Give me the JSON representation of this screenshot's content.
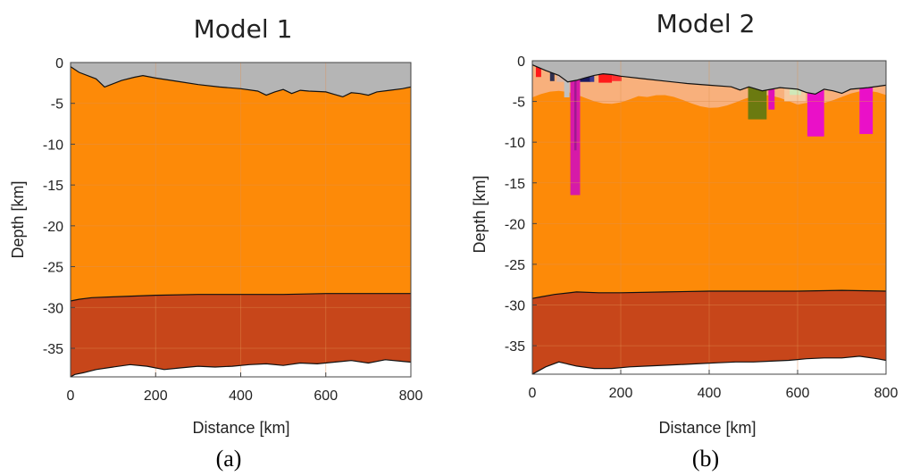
{
  "panels": {
    "a": {
      "label": "(a)"
    },
    "b": {
      "label": "(b)"
    }
  },
  "chart_data": [
    {
      "type": "area",
      "title": "Model 1",
      "xlabel": "Distance [km]",
      "ylabel": "Depth [km]",
      "xlim": [
        0,
        800
      ],
      "ylim": [
        -38.5,
        0
      ],
      "xticks": [
        0,
        200,
        400,
        600,
        800
      ],
      "yticks": [
        0,
        -5,
        -10,
        -15,
        -20,
        -25,
        -30,
        -35
      ],
      "grid": true,
      "colors": {
        "sky": "#b5b5b5",
        "upper_crust": "#fd8a08",
        "lower_crust": "#c7461a",
        "below": "#ffffff",
        "grid": "#e09050"
      },
      "series": [
        {
          "x": [
            0,
            20,
            60,
            80,
            95,
            120,
            150,
            170,
            200,
            250,
            300,
            350,
            400,
            440,
            460,
            480,
            500,
            520,
            540,
            560,
            600,
            620,
            640,
            660,
            680,
            700,
            720,
            750,
            780,
            800
          ],
          "y": [
            -0.5,
            -1.2,
            -2.0,
            -3.0,
            -2.7,
            -2.2,
            -1.8,
            -1.6,
            -1.9,
            -2.3,
            -2.7,
            -3.0,
            -3.2,
            -3.5,
            -4.0,
            -3.6,
            -3.3,
            -3.8,
            -3.4,
            -3.5,
            -3.6,
            -3.9,
            -4.2,
            -3.7,
            -3.8,
            -4.0,
            -3.6,
            -3.4,
            -3.2,
            -3.0
          ]
        },
        {
          "x": [
            0,
            20,
            50,
            100,
            150,
            200,
            300,
            400,
            500,
            600,
            700,
            800
          ],
          "y": [
            -29.2,
            -29.0,
            -28.8,
            -28.7,
            -28.6,
            -28.5,
            -28.4,
            -28.4,
            -28.4,
            -28.3,
            -28.3,
            -28.3
          ]
        },
        {
          "x": [
            0,
            10,
            30,
            60,
            100,
            140,
            180,
            220,
            260,
            300,
            340,
            380,
            420,
            460,
            500,
            540,
            580,
            620,
            660,
            700,
            740,
            780,
            800
          ],
          "y": [
            -38.5,
            -38.2,
            -38.0,
            -37.6,
            -37.3,
            -37.0,
            -37.2,
            -37.6,
            -37.4,
            -37.2,
            -37.3,
            -37.2,
            -37.0,
            -36.9,
            -37.1,
            -36.8,
            -36.9,
            -36.7,
            -36.5,
            -36.8,
            -36.4,
            -36.6,
            -36.7
          ]
        }
      ]
    },
    {
      "type": "area",
      "title": "Model 2",
      "xlabel": "Distance [km]",
      "ylabel": "Depth [km]",
      "xlim": [
        0,
        800
      ],
      "ylim": [
        -38.5,
        0
      ],
      "xticks": [
        0,
        200,
        400,
        600,
        800
      ],
      "yticks": [
        0,
        -5,
        -10,
        -15,
        -20,
        -25,
        -30,
        -35
      ],
      "grid": true,
      "colors": {
        "sky": "#b5b5b5",
        "upper_crust": "#fd8a08",
        "lower_crust": "#c7461a",
        "below": "#ffffff",
        "grid": "#e09050",
        "sediment_light": "#f7b48a",
        "sediment_pale": "#f6c9a0"
      },
      "series": [
        {
          "x": [
            0,
            30,
            60,
            80,
            100,
            120,
            140,
            160,
            180,
            200,
            250,
            300,
            350,
            400,
            450,
            470,
            490,
            520,
            560,
            600,
            620,
            640,
            660,
            680,
            700,
            720,
            760,
            800
          ],
          "y": [
            -0.5,
            -1.2,
            -1.8,
            -2.6,
            -2.4,
            -2.1,
            -1.8,
            -1.6,
            -1.7,
            -1.9,
            -2.2,
            -2.5,
            -2.8,
            -3.0,
            -3.2,
            -3.6,
            -3.2,
            -3.7,
            -3.3,
            -3.5,
            -3.9,
            -4.1,
            -3.5,
            -3.7,
            -4.0,
            -3.5,
            -3.3,
            -3.0
          ]
        },
        {
          "x": [
            0,
            20,
            50,
            100,
            150,
            200,
            300,
            400,
            500,
            600,
            700,
            800
          ],
          "y": [
            -29.2,
            -29.0,
            -28.7,
            -28.4,
            -28.5,
            -28.5,
            -28.4,
            -28.3,
            -28.3,
            -28.3,
            -28.2,
            -28.3
          ]
        },
        {
          "x": [
            0,
            10,
            30,
            60,
            100,
            140,
            180,
            220,
            260,
            300,
            340,
            380,
            420,
            460,
            500,
            540,
            580,
            620,
            660,
            700,
            740,
            780,
            800
          ],
          "y": [
            -38.5,
            -38.2,
            -37.6,
            -37.0,
            -37.5,
            -37.8,
            -37.8,
            -37.6,
            -37.5,
            -37.4,
            -37.3,
            -37.2,
            -37.1,
            -37.0,
            -37.0,
            -36.9,
            -36.8,
            -36.6,
            -36.5,
            -36.5,
            -36.3,
            -36.6,
            -36.8
          ]
        }
      ],
      "bodies": [
        {
          "x0": 86,
          "x1": 108,
          "y0": -2.0,
          "y1": -16.5,
          "color": "#d61aa8"
        },
        {
          "x0": 95,
          "x1": 100,
          "y0": -2.0,
          "y1": -11.0,
          "color": "#a01890"
        },
        {
          "x0": 622,
          "x1": 660,
          "y0": -3.0,
          "y1": -9.3,
          "color": "#ea10c8"
        },
        {
          "x0": 740,
          "x1": 770,
          "y0": -3.0,
          "y1": -9.0,
          "color": "#ea10c8"
        },
        {
          "x0": 488,
          "x1": 530,
          "y0": -2.8,
          "y1": -7.2,
          "color": "#6b7a10"
        },
        {
          "x0": 534,
          "x1": 548,
          "y0": -3.0,
          "y1": -6.0,
          "color": "#e010b8"
        },
        {
          "x0": 570,
          "x1": 618,
          "y0": -2.5,
          "y1": -5.0,
          "color": "#f6c9a0"
        },
        {
          "x0": 582,
          "x1": 608,
          "y0": -2.5,
          "y1": -4.2,
          "color": "#cfe8b8"
        },
        {
          "x0": 150,
          "x1": 180,
          "y0": -1.5,
          "y1": -2.7,
          "color": "#ff1a1a"
        },
        {
          "x0": 180,
          "x1": 202,
          "y0": -1.6,
          "y1": -2.5,
          "color": "#ff3030"
        },
        {
          "x0": 8,
          "x1": 20,
          "y0": -0.5,
          "y1": -2.0,
          "color": "#ff1a1a"
        },
        {
          "x0": 108,
          "x1": 132,
          "y0": -1.6,
          "y1": -2.6,
          "color": "#1a1a60"
        },
        {
          "x0": 130,
          "x1": 140,
          "y0": -1.8,
          "y1": -2.6,
          "color": "#3a3a90"
        },
        {
          "x0": 40,
          "x1": 50,
          "y0": -0.8,
          "y1": -2.5,
          "color": "#303050"
        },
        {
          "x0": 55,
          "x1": 76,
          "y0": -1.0,
          "y1": -2.6,
          "color": "#d9b7a8"
        },
        {
          "x0": 72,
          "x1": 84,
          "y0": -1.2,
          "y1": -4.5,
          "color": "#c0c0c0"
        }
      ],
      "sediment_bands": [
        {
          "x": [
            0,
            800
          ],
          "top": -2.0,
          "bottom": -4.5,
          "color": "#f7b48a"
        }
      ]
    }
  ]
}
